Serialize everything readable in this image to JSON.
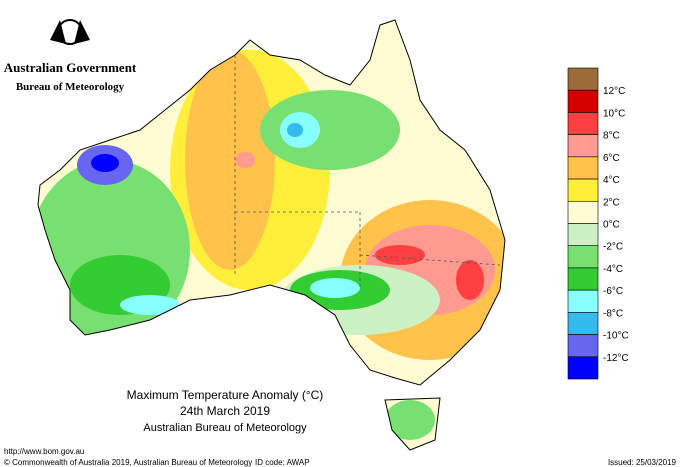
{
  "header": {
    "agency": "Australian Government",
    "bureau": "Bureau of Meteorology"
  },
  "map": {
    "title": "Maximum Temperature Anomaly (°C)",
    "date": "24th March 2019",
    "source": "Australian Bureau of Meteorology"
  },
  "legend": {
    "colors": [
      "#9b6b3a",
      "#d40000",
      "#ff4040",
      "#ff9a90",
      "#ffc24a",
      "#ffef3a",
      "#fffbd2",
      "#ccf2c4",
      "#77e070",
      "#33cc33",
      "#88ffff",
      "#33bbee",
      "#6666ee",
      "#0000ff"
    ],
    "labels": [
      "12°C",
      "10°C",
      "8°C",
      "6°C",
      "4°C",
      "2°C",
      "0°C",
      "-2°C",
      "-4°C",
      "-6°C",
      "-8°C",
      "-10°C",
      "-12°C"
    ]
  },
  "footer": {
    "url": "http://www.bom.gov.au",
    "copyright": "© Commonwealth of Australia 2019, Australian Bureau of Meteorology",
    "id_code": "ID code: AWAP",
    "issued": "Issued: 25/03/2019"
  }
}
